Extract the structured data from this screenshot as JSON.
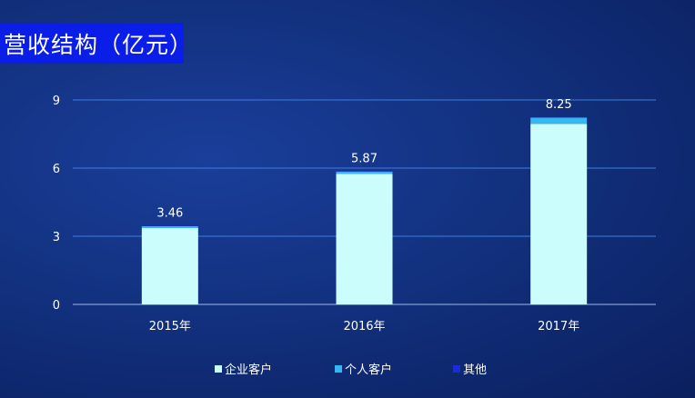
{
  "header": {
    "title": "营收结构（亿元）"
  },
  "colors": {
    "enterprise": "#ccfdfd",
    "personal": "#35b7ef",
    "other": "#1a2bd8",
    "gridline": "#3c7fe0",
    "axis": "#9fb8ea"
  },
  "chart_data": {
    "type": "bar",
    "stacked": true,
    "categories": [
      "2015年",
      "2016年",
      "2017年"
    ],
    "series": [
      {
        "name": "企业客户",
        "values": [
          3.36,
          5.75,
          7.95
        ]
      },
      {
        "name": "个人客户",
        "values": [
          0.08,
          0.1,
          0.27
        ]
      },
      {
        "name": "其他",
        "values": [
          0.02,
          0.02,
          0.03
        ]
      }
    ],
    "totals": [
      3.46,
      5.87,
      8.25
    ],
    "ylim": [
      0,
      9
    ],
    "yticks": [
      0,
      3,
      6,
      9
    ],
    "grid": true,
    "legend_position": "bottom"
  }
}
